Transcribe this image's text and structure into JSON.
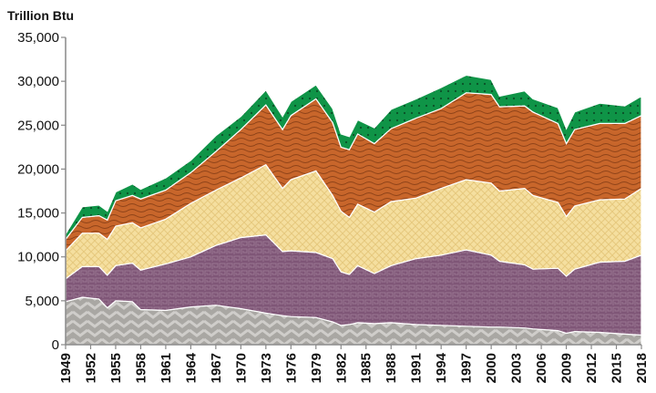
{
  "chart_data": {
    "type": "area",
    "stacked": true,
    "title": "",
    "ylabel": "Trillion Btu",
    "xlabel": "",
    "xlim": [
      1949,
      2018
    ],
    "ylim": [
      0,
      35000
    ],
    "grid": false,
    "legend": "none",
    "y_ticks": [
      0,
      5000,
      10000,
      15000,
      20000,
      25000,
      30000,
      35000
    ],
    "y_tick_labels": [
      "0",
      "5,000",
      "10,000",
      "15,000",
      "20,000",
      "25,000",
      "30,000",
      "35,000"
    ],
    "x_tick_labels": [
      "1949",
      "1952",
      "1955",
      "1958",
      "1961",
      "1964",
      "1967",
      "1970",
      "1973",
      "1976",
      "1979",
      "1982",
      "1985",
      "1988",
      "1991",
      "1994",
      "1997",
      "2000",
      "2003",
      "2006",
      "2009",
      "2012",
      "2015",
      "2018"
    ],
    "x": [
      1949,
      1951,
      1953,
      1954,
      1955,
      1957,
      1958,
      1961,
      1964,
      1967,
      1970,
      1973,
      1975,
      1976,
      1979,
      1981,
      1982,
      1983,
      1984,
      1986,
      1988,
      1991,
      1994,
      1997,
      2000,
      2001,
      2004,
      2005,
      2008,
      2009,
      2010,
      2013,
      2016,
      2018
    ],
    "series": [
      {
        "color": "#b4b2ae",
        "pattern": "chevron",
        "values": [
          4900,
          5400,
          5200,
          4200,
          5000,
          4900,
          4000,
          3900,
          4300,
          4500,
          4100,
          3600,
          3300,
          3200,
          3100,
          2600,
          2200,
          2300,
          2500,
          2400,
          2500,
          2300,
          2200,
          2100,
          2000,
          2000,
          1900,
          1800,
          1600,
          1300,
          1500,
          1400,
          1200,
          1100
        ]
      },
      {
        "color": "#7f5677",
        "pattern": "greek-key",
        "values": [
          2600,
          3500,
          3700,
          3700,
          4000,
          4400,
          4500,
          5300,
          5700,
          6800,
          8100,
          8900,
          7300,
          7500,
          7400,
          7200,
          6100,
          5700,
          6500,
          5700,
          6500,
          7500,
          8000,
          8700,
          8200,
          7500,
          7200,
          6800,
          7100,
          6500,
          7100,
          8000,
          8300,
          9100
        ]
      },
      {
        "color": "#f3dc9c",
        "pattern": "crosshatch",
        "values": [
          3200,
          3800,
          3800,
          4100,
          4500,
          4600,
          4800,
          5100,
          6100,
          6300,
          6800,
          8000,
          7200,
          8100,
          9300,
          7200,
          6900,
          6500,
          7000,
          7000,
          7300,
          6900,
          7600,
          8000,
          8200,
          8000,
          8700,
          8400,
          7500,
          6800,
          7200,
          7100,
          7100,
          7600
        ]
      },
      {
        "color": "#c8662b",
        "pattern": "waves",
        "values": [
          1300,
          1800,
          2000,
          2200,
          2900,
          3100,
          3300,
          3300,
          3500,
          4400,
          5500,
          6800,
          6700,
          7300,
          8200,
          8300,
          7300,
          7700,
          8000,
          7800,
          8300,
          9100,
          9100,
          9900,
          10100,
          9600,
          9400,
          9500,
          9000,
          8300,
          8700,
          8700,
          8600,
          8300
        ]
      },
      {
        "color": "#0f9447",
        "pattern": "dots",
        "values": [
          600,
          1200,
          1200,
          1000,
          1000,
          1300,
          1100,
          1400,
          1400,
          1800,
          1500,
          1700,
          1500,
          1600,
          1600,
          1600,
          1500,
          1500,
          1600,
          1800,
          2200,
          2200,
          2400,
          2000,
          1700,
          1200,
          1700,
          1500,
          1800,
          1700,
          2000,
          2300,
          2000,
          2200
        ]
      }
    ]
  }
}
